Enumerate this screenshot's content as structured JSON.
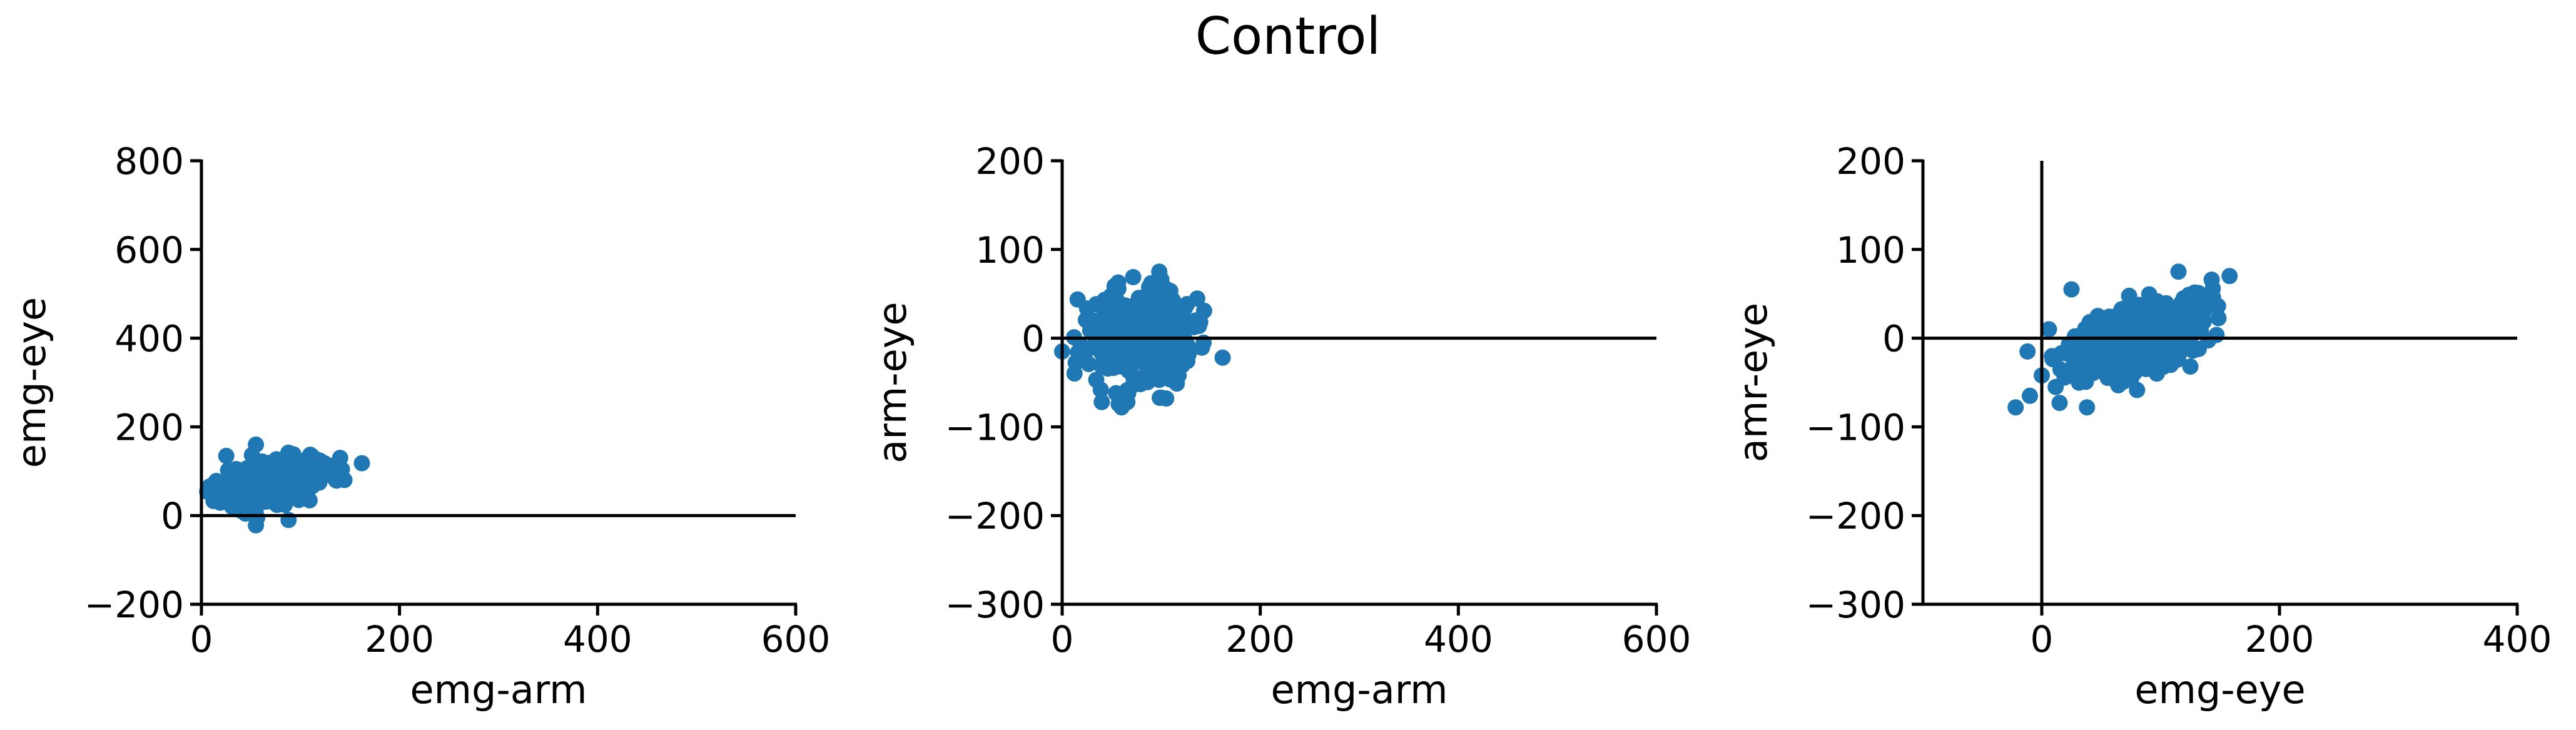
{
  "figure": {
    "title": "Control"
  },
  "chart_data": [
    {
      "type": "scatter",
      "title": "",
      "xlabel": "emg-arm",
      "ylabel": "emg-eye",
      "xlim": [
        0,
        600
      ],
      "ylim": [
        -200,
        800
      ],
      "xticks": [
        0,
        200,
        400,
        600
      ],
      "yticks": [
        -200,
        0,
        200,
        400,
        600,
        800
      ],
      "xtick_labels": [
        "0",
        "200",
        "400",
        "600"
      ],
      "ytick_labels": [
        "−200",
        "0",
        "200",
        "400",
        "600",
        "800"
      ],
      "reference_lines": {
        "y": [
          0
        ],
        "x": []
      },
      "grid": false,
      "color": "#1f77b4",
      "cluster": {
        "n": 320,
        "x_mean": 75,
        "x_sd": 28,
        "y_mean": 80,
        "y_sd": 28,
        "corr": 0.4,
        "x_min": 5,
        "x_max": 150,
        "y_min": -20,
        "y_max": 150,
        "seed": 11
      },
      "outliers": [
        {
          "x": 162,
          "y": 118
        },
        {
          "x": 55,
          "y": 160
        },
        {
          "x": 8,
          "y": 65
        },
        {
          "x": 15,
          "y": 78
        },
        {
          "x": 55,
          "y": -22
        },
        {
          "x": 88,
          "y": -10
        },
        {
          "x": 140,
          "y": 130
        }
      ]
    },
    {
      "type": "scatter",
      "title": "",
      "xlabel": "emg-arm",
      "ylabel": "arm-eye",
      "xlim": [
        0,
        600
      ],
      "ylim": [
        -300,
        200
      ],
      "xticks": [
        0,
        200,
        400,
        600
      ],
      "yticks": [
        -300,
        -200,
        -100,
        0,
        100,
        200
      ],
      "xtick_labels": [
        "0",
        "200",
        "400",
        "600"
      ],
      "ytick_labels": [
        "−300",
        "−200",
        "−100",
        "0",
        "100",
        "200"
      ],
      "reference_lines": {
        "y": [
          0
        ],
        "x": []
      },
      "grid": false,
      "color": "#1f77b4",
      "cluster": {
        "n": 320,
        "x_mean": 75,
        "x_sd": 28,
        "y_mean": 0,
        "y_sd": 30,
        "corr": 0.0,
        "x_min": 5,
        "x_max": 145,
        "y_min": -75,
        "y_max": 75,
        "seed": 23
      },
      "outliers": [
        {
          "x": 162,
          "y": -22
        },
        {
          "x": 0,
          "y": -15
        },
        {
          "x": 98,
          "y": 75
        },
        {
          "x": 40,
          "y": -72
        },
        {
          "x": 60,
          "y": -78
        },
        {
          "x": 105,
          "y": -68
        },
        {
          "x": 135,
          "y": 20
        }
      ]
    },
    {
      "type": "scatter",
      "title": "",
      "xlabel": "emg-eye",
      "ylabel": "amr-eye",
      "xlim": [
        -100,
        400
      ],
      "ylim": [
        -300,
        200
      ],
      "xticks": [
        0,
        200,
        400
      ],
      "yticks": [
        -300,
        -200,
        -100,
        0,
        100,
        200
      ],
      "xtick_labels": [
        "0",
        "200",
        "400"
      ],
      "ytick_labels": [
        "−300",
        "−200",
        "−100",
        "0",
        "100",
        "200"
      ],
      "reference_lines": {
        "y": [
          0
        ],
        "x": [
          0
        ]
      },
      "grid": false,
      "color": "#1f77b4",
      "cluster": {
        "n": 320,
        "x_mean": 80,
        "x_sd": 30,
        "y_mean": 0,
        "y_sd": 25,
        "corr": 0.55,
        "x_min": 5,
        "x_max": 150,
        "y_min": -60,
        "y_max": 75,
        "seed": 37
      },
      "outliers": [
        {
          "x": 158,
          "y": 70
        },
        {
          "x": -22,
          "y": -78
        },
        {
          "x": -10,
          "y": -65
        },
        {
          "x": -12,
          "y": -15
        },
        {
          "x": 0,
          "y": -42
        },
        {
          "x": 6,
          "y": 10
        },
        {
          "x": 25,
          "y": 55
        },
        {
          "x": 15,
          "y": -73
        },
        {
          "x": 38,
          "y": -78
        },
        {
          "x": 115,
          "y": 75
        },
        {
          "x": 125,
          "y": -32
        }
      ]
    }
  ]
}
